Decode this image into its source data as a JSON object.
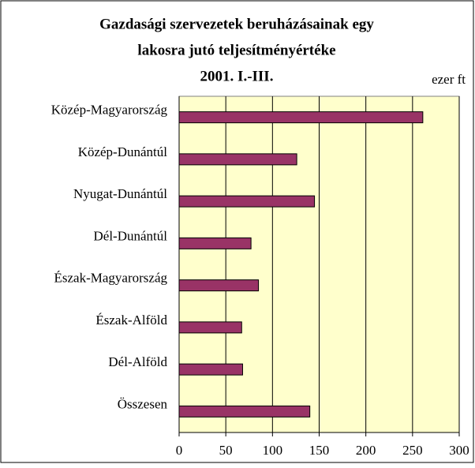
{
  "chart_data": {
    "type": "hbar",
    "title": [
      "Gazdasági szervezetek beruházásainak egy",
      "lakosra jutó teljesítményértéke",
      "2001. I.-III."
    ],
    "xlabel": "ezer ft",
    "categories": [
      "Közép-Magyarország",
      "Közép-Dunántúl",
      "Nyugat-Dunántúl",
      "Dél-Dunántúl",
      "Észak-Magyarország",
      "Észak-Alföld",
      "Dél-Alföld",
      "Összesen"
    ],
    "values": [
      261,
      126,
      145,
      77,
      85,
      67,
      68,
      140
    ],
    "color": "#993366",
    "xlim": [
      0,
      300
    ],
    "xticks": [
      0,
      50,
      100,
      150,
      200,
      250,
      300
    ],
    "grid": true
  }
}
